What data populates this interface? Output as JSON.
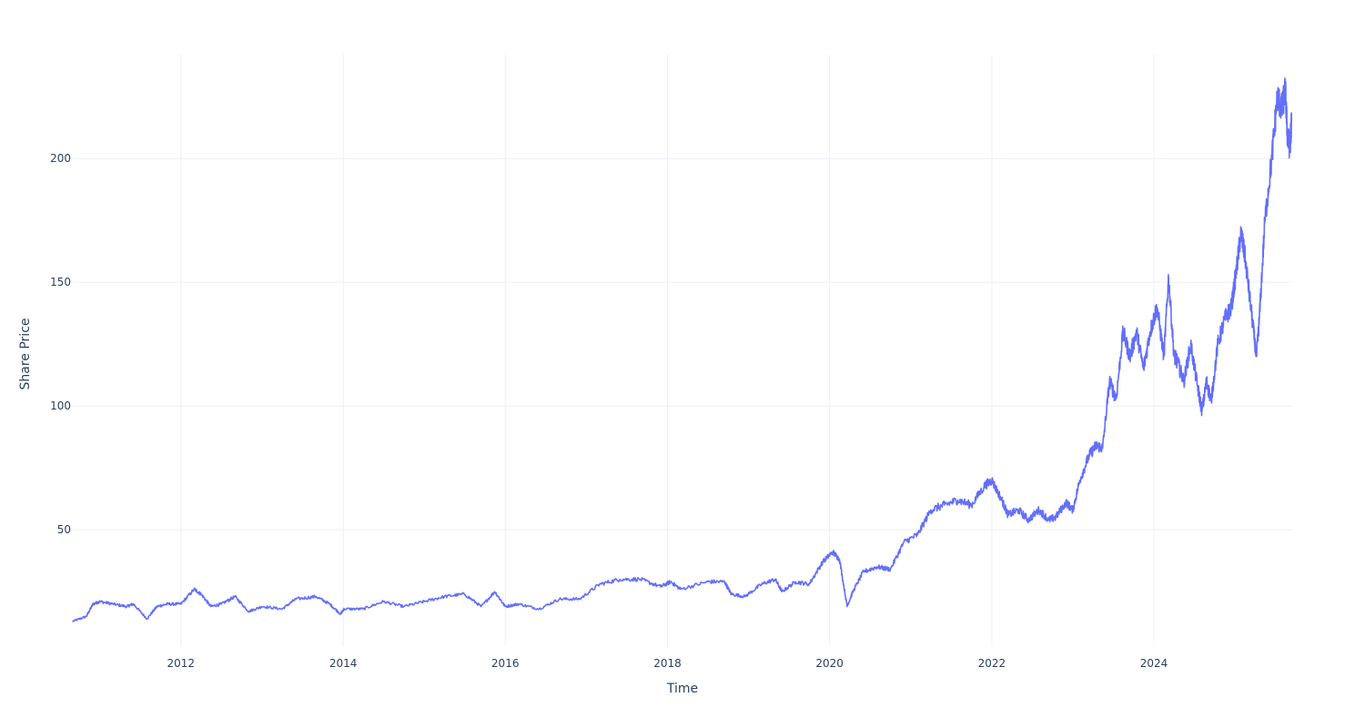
{
  "chart_data": {
    "type": "line",
    "title": "",
    "xlabel": "Time",
    "ylabel": "Share Price",
    "x_type": "date",
    "xlim": [
      "2010-09-01",
      "2025-09-15"
    ],
    "ylim": [
      3,
      242
    ],
    "x_ticks": [
      "2012",
      "2014",
      "2016",
      "2018",
      "2020",
      "2022",
      "2024"
    ],
    "x_tick_dates": [
      "2012-01-01",
      "2014-01-01",
      "2016-01-01",
      "2018-01-01",
      "2020-01-01",
      "2022-01-01",
      "2024-01-01"
    ],
    "y_ticks": [
      50,
      100,
      150,
      200
    ],
    "grid": true,
    "legend": "none",
    "colors": {
      "line": "#636efa",
      "grid": "#ebf0f8",
      "text": "#2a3f5f",
      "background": "#ffffff"
    },
    "series": [
      {
        "x": [
          "2010-09-01",
          "2010-11-01",
          "2010-12-01",
          "2011-01-01",
          "2011-03-01",
          "2011-05-01",
          "2011-06-01",
          "2011-08-01",
          "2011-09-15",
          "2011-11-01",
          "2012-01-01",
          "2012-03-01",
          "2012-04-01",
          "2012-05-15",
          "2012-07-01",
          "2012-09-01",
          "2012-11-01",
          "2013-01-01",
          "2013-04-01",
          "2013-06-01",
          "2013-09-01",
          "2013-11-01",
          "2013-12-20",
          "2014-01-05",
          "2014-04-01",
          "2014-07-01",
          "2014-10-01",
          "2015-01-01",
          "2015-04-01",
          "2015-07-01",
          "2015-09-15",
          "2015-11-15",
          "2016-01-01",
          "2016-03-01",
          "2016-06-01",
          "2016-09-01",
          "2016-12-01",
          "2017-03-01",
          "2017-06-01",
          "2017-09-01",
          "2017-12-01",
          "2018-01-15",
          "2018-03-01",
          "2018-07-01",
          "2018-09-15",
          "2018-10-15",
          "2018-12-15",
          "2019-03-01",
          "2019-05-01",
          "2019-06-01",
          "2019-08-01",
          "2019-10-01",
          "2019-12-01",
          "2020-01-15",
          "2020-02-15",
          "2020-03-20",
          "2020-04-15",
          "2020-06-01",
          "2020-08-01",
          "2020-10-01",
          "2020-12-01",
          "2021-02-01",
          "2021-04-01",
          "2021-06-01",
          "2021-08-01",
          "2021-10-01",
          "2021-12-01",
          "2022-01-01",
          "2022-02-15",
          "2022-03-15",
          "2022-05-01",
          "2022-06-15",
          "2022-08-01",
          "2022-09-15",
          "2022-10-15",
          "2022-12-01",
          "2023-01-01",
          "2023-02-01",
          "2023-03-15",
          "2023-04-15",
          "2023-05-15",
          "2023-06-15",
          "2023-07-15",
          "2023-08-15",
          "2023-09-15",
          "2023-10-15",
          "2023-11-15",
          "2023-12-15",
          "2024-01-15",
          "2024-02-15",
          "2024-03-07",
          "2024-04-01",
          "2024-04-15",
          "2024-05-15",
          "2024-06-15",
          "2024-07-15",
          "2024-08-05",
          "2024-08-25",
          "2024-09-15",
          "2024-10-15",
          "2024-11-15",
          "2024-12-15",
          "2025-01-07",
          "2025-01-27",
          "2025-02-15",
          "2025-03-15",
          "2025-04-07",
          "2025-04-20",
          "2025-05-15",
          "2025-06-15",
          "2025-07-10",
          "2025-07-31",
          "2025-08-15",
          "2025-08-25",
          "2025-09-05",
          "2025-09-12"
        ],
        "y": [
          13,
          15,
          20,
          21,
          20,
          19,
          20,
          14,
          19,
          20,
          20,
          26,
          24,
          19,
          20,
          23,
          17,
          19,
          18,
          22,
          23,
          20,
          16,
          18,
          18,
          21,
          19,
          21,
          23,
          24,
          19,
          25,
          19,
          20,
          18,
          22,
          22,
          28,
          30,
          30,
          27,
          29,
          26,
          29,
          29,
          24,
          23,
          28,
          30,
          25,
          29,
          28,
          37,
          41,
          38,
          19,
          25,
          33,
          35,
          34,
          45,
          48,
          58,
          60,
          62,
          60,
          68,
          70,
          62,
          56,
          58,
          54,
          58,
          54,
          55,
          61,
          58,
          70,
          80,
          84,
          83,
          110,
          103,
          130,
          120,
          130,
          115,
          130,
          140,
          120,
          152,
          120,
          118,
          110,
          125,
          108,
          98,
          110,
          102,
          125,
          135,
          140,
          155,
          170,
          160,
          138,
          120,
          135,
          175,
          200,
          225,
          220,
          228,
          208,
          205,
          215
        ]
      }
    ]
  }
}
